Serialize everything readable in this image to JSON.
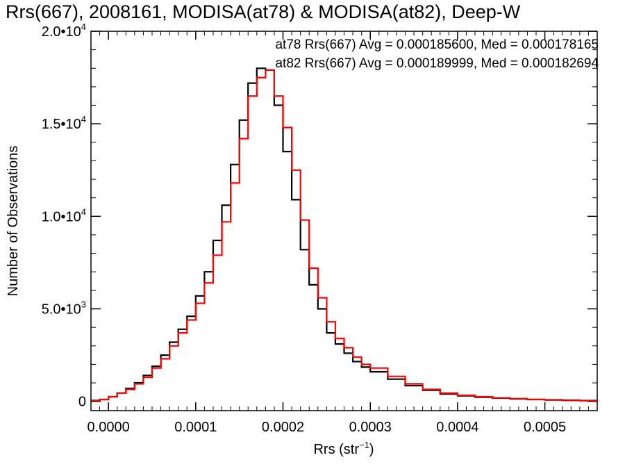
{
  "chart_data": {
    "type": "line",
    "step": true,
    "title": "Rrs(667), 2008161, MODISA(at78) & MODISA(at82), Deep-W",
    "xlabel": {
      "base": "Rrs (str",
      "sup": "−1",
      "end": ")"
    },
    "ylabel": "Number of Observations",
    "xlim": [
      -2e-05,
      0.00056
    ],
    "ylim": [
      -500,
      20000
    ],
    "x_ticks": [
      {
        "v": 0.0,
        "label": "0.0000"
      },
      {
        "v": 0.0001,
        "label": "0.0001"
      },
      {
        "v": 0.0002,
        "label": "0.0002"
      },
      {
        "v": 0.0003,
        "label": "0.0003"
      },
      {
        "v": 0.0004,
        "label": "0.0004"
      },
      {
        "v": 0.0005,
        "label": "0.0005"
      }
    ],
    "y_ticks": [
      {
        "v": 0,
        "base": "0",
        "exp": ""
      },
      {
        "v": 5000,
        "base": "5.0•10",
        "exp": "3"
      },
      {
        "v": 10000,
        "base": "1.0•10",
        "exp": "4"
      },
      {
        "v": 15000,
        "base": "1.5•10",
        "exp": "4"
      },
      {
        "v": 20000,
        "base": "2.0•10",
        "exp": "4"
      }
    ],
    "grid": false,
    "annotations": [
      {
        "text": "at78 Rrs(667) Avg = 0.000185600, Med = 0.000178165",
        "color": "#000000"
      },
      {
        "text": "at82 Rrs(667) Avg = 0.000189999, Med = 0.000182694",
        "color": "#ff0000"
      }
    ],
    "series": [
      {
        "color": "#000000",
        "x": [
          -2e-05,
          -1e-05,
          0.0,
          1e-05,
          2e-05,
          3e-05,
          4e-05,
          5e-05,
          6e-05,
          7e-05,
          8e-05,
          9e-05,
          0.0001,
          0.00011,
          0.00012,
          0.00013,
          0.00014,
          0.00015,
          0.00016,
          0.00017,
          0.00018,
          0.00019,
          0.0002,
          0.00021,
          0.00022,
          0.00023,
          0.00024,
          0.00025,
          0.00026,
          0.00027,
          0.00028,
          0.00029,
          0.0003,
          0.00032,
          0.00034,
          0.00036,
          0.00038,
          0.0004,
          0.00042,
          0.00044,
          0.00046,
          0.00048,
          0.0005,
          0.00052,
          0.00054,
          0.00056
        ],
        "y": [
          50,
          100,
          250,
          450,
          700,
          1000,
          1400,
          1900,
          2500,
          3200,
          3900,
          4600,
          5700,
          7000,
          8700,
          10600,
          12800,
          15200,
          17200,
          18000,
          17900,
          16000,
          13500,
          10900,
          8200,
          6300,
          5000,
          3700,
          3100,
          2600,
          2150,
          1850,
          1600,
          1200,
          850,
          600,
          400,
          300,
          230,
          180,
          140,
          100,
          80,
          60,
          40,
          30
        ]
      },
      {
        "color": "#ff0000",
        "x": [
          -2e-05,
          -1e-05,
          0.0,
          1e-05,
          2e-05,
          3e-05,
          4e-05,
          5e-05,
          6e-05,
          7e-05,
          8e-05,
          9e-05,
          0.0001,
          0.00011,
          0.00012,
          0.00013,
          0.00014,
          0.00015,
          0.00016,
          0.00017,
          0.00018,
          0.00019,
          0.0002,
          0.00021,
          0.00022,
          0.00023,
          0.00024,
          0.00025,
          0.00026,
          0.00027,
          0.00028,
          0.00029,
          0.0003,
          0.00032,
          0.00034,
          0.00036,
          0.00038,
          0.0004,
          0.00042,
          0.00044,
          0.00046,
          0.00048,
          0.0005,
          0.00052,
          0.00054,
          0.00056
        ],
        "y": [
          50,
          100,
          250,
          450,
          650,
          950,
          1300,
          1800,
          2300,
          3000,
          3700,
          4400,
          5300,
          6400,
          7900,
          9700,
          11800,
          14200,
          16500,
          17500,
          17900,
          16500,
          14800,
          12500,
          9800,
          7200,
          5600,
          4300,
          3400,
          2900,
          2400,
          2000,
          1800,
          1350,
          950,
          650,
          450,
          330,
          250,
          190,
          150,
          110,
          90,
          70,
          50,
          40
        ]
      }
    ]
  }
}
